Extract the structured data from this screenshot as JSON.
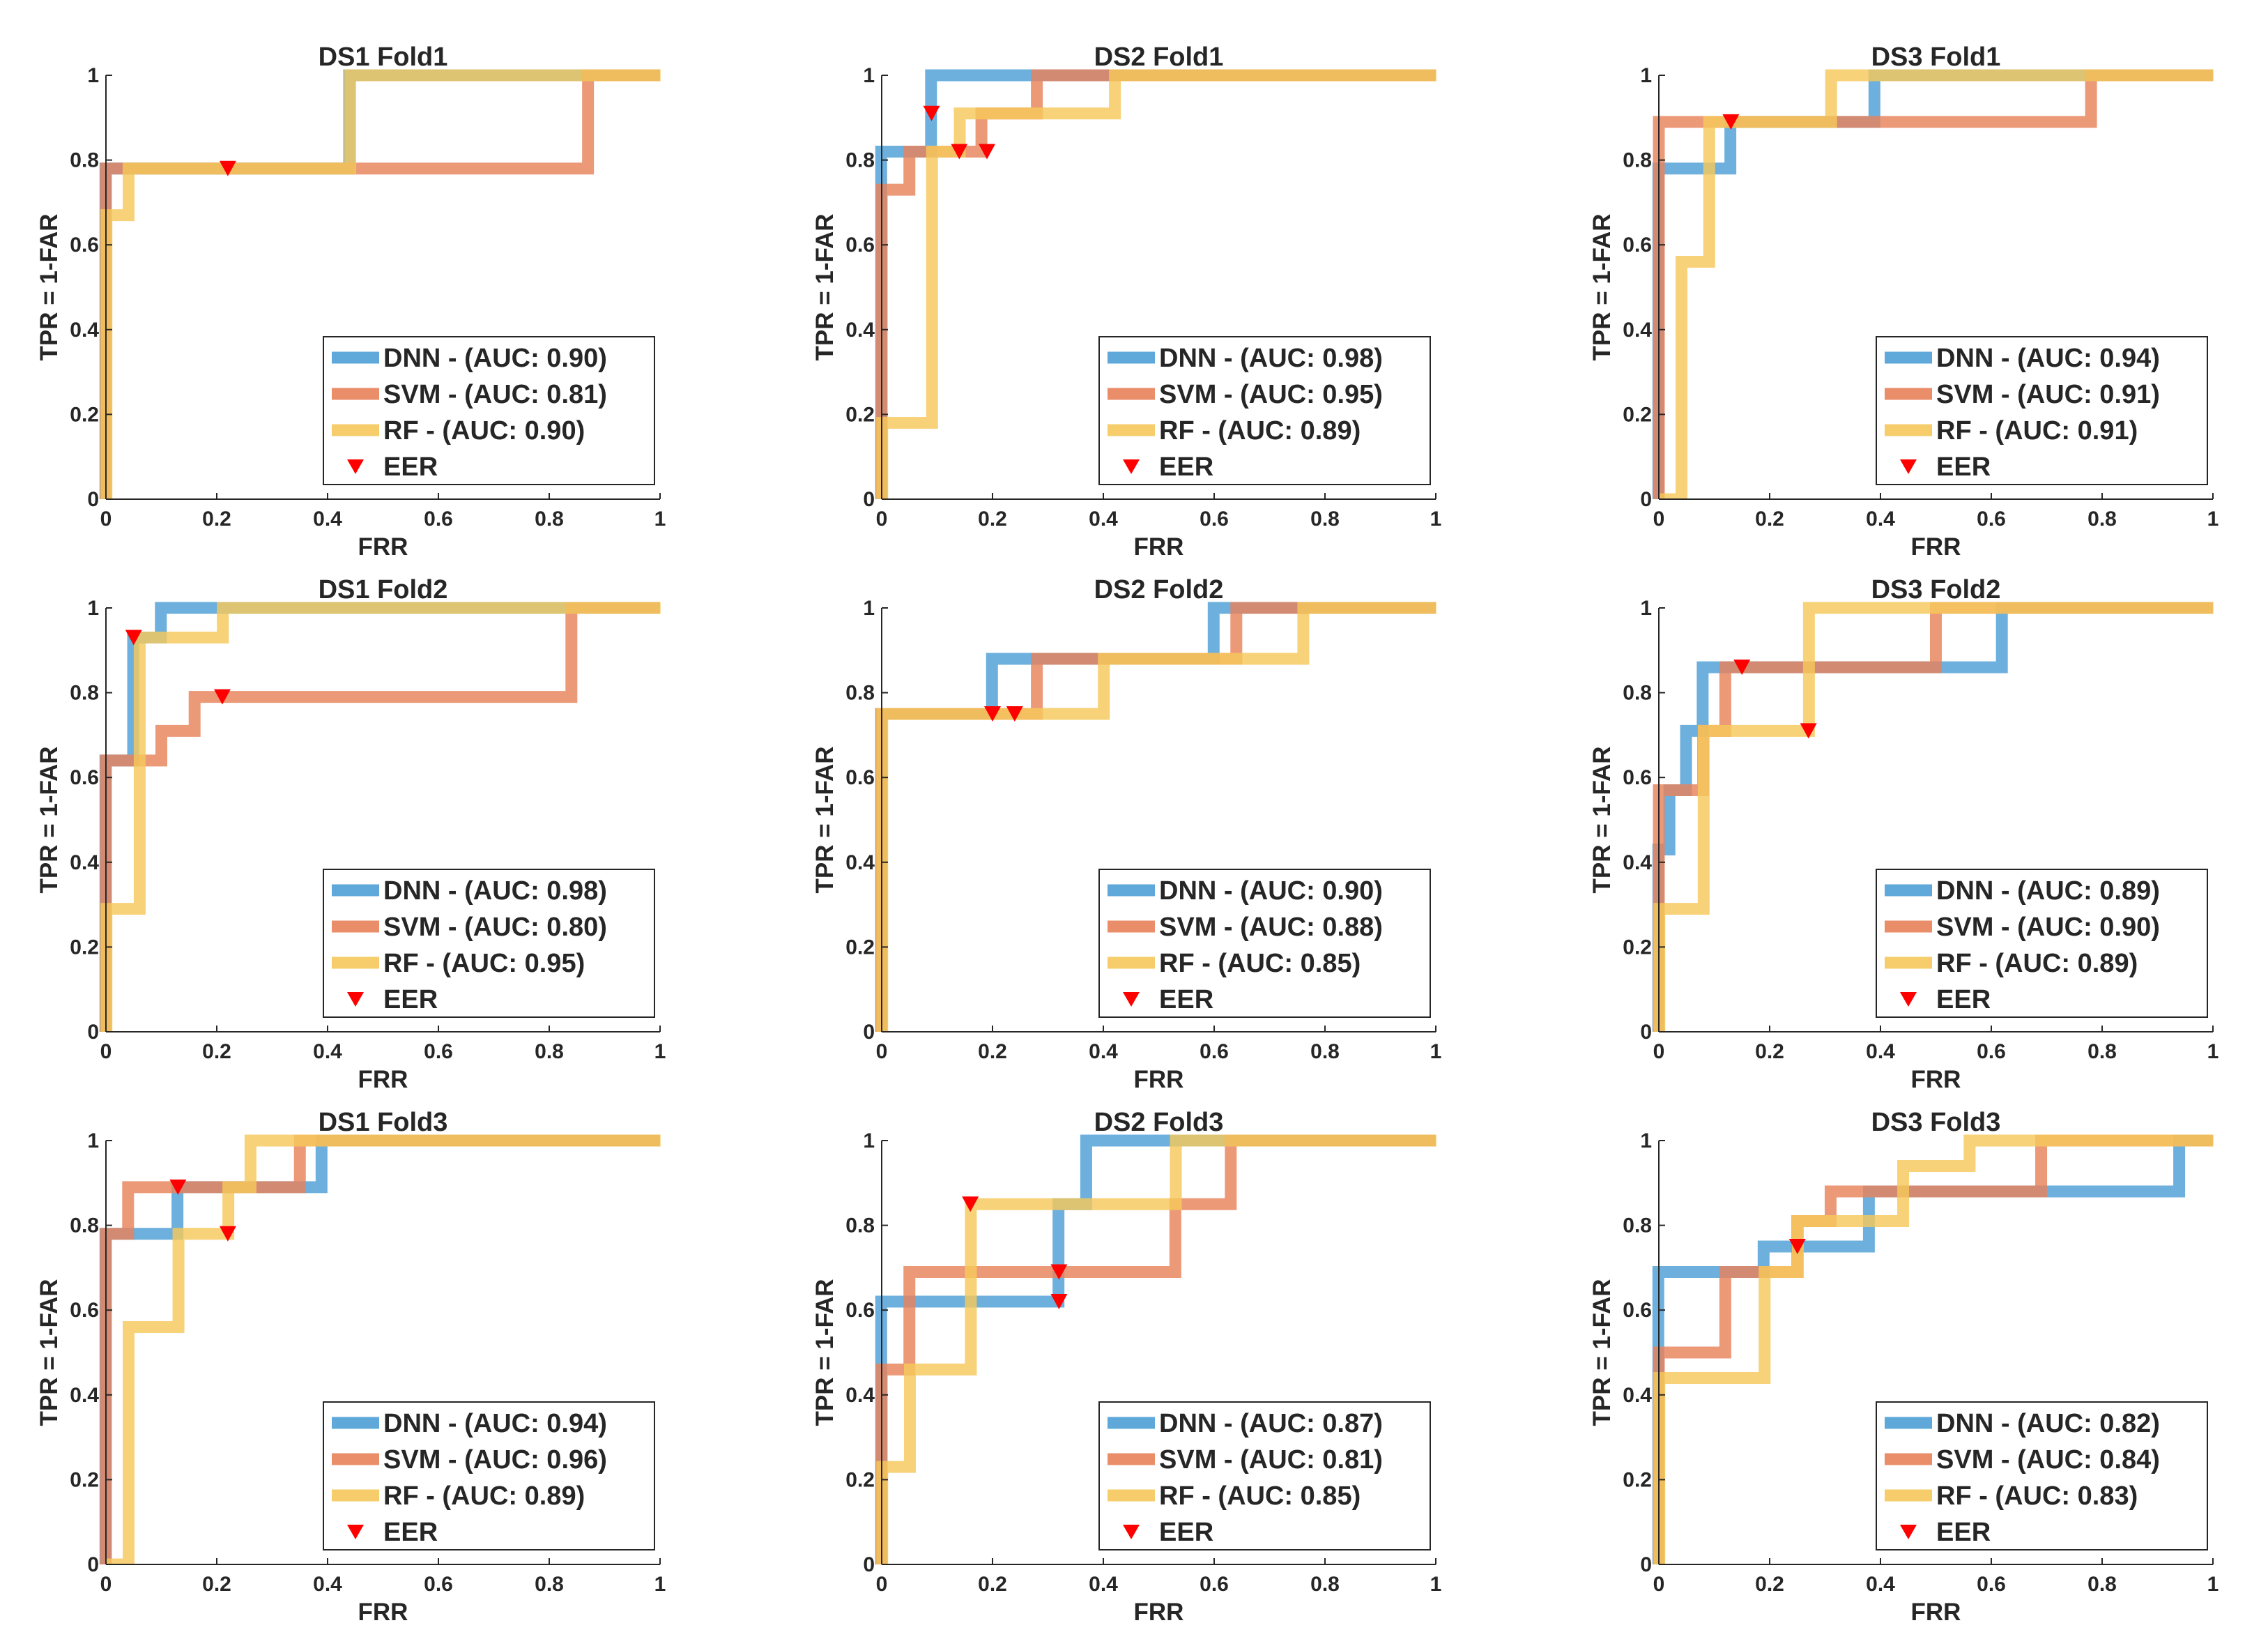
{
  "figure": {
    "axis_color": "#262626",
    "legend_border_color": "#262626",
    "eer_color": "#ff0000"
  },
  "chart_data": [
    {
      "type": "line",
      "title": "DS1 Fold1",
      "xlabel": "FRR",
      "ylabel": "TPR = 1-FAR",
      "xlim": [
        0,
        1
      ],
      "ylim": [
        0,
        1
      ],
      "xticks": [
        0,
        0.2,
        0.4,
        0.6,
        0.8,
        1
      ],
      "xtick_labels": [
        "0",
        "0.2",
        "0.4",
        "0.6",
        "0.8",
        "1"
      ],
      "yticks": [
        0,
        0.2,
        0.4,
        0.6,
        0.8,
        1
      ],
      "ytick_labels": [
        "0",
        "0.2",
        "0.4",
        "0.6",
        "0.8",
        "1"
      ],
      "legend_position": "lower-right",
      "series": [
        {
          "name": "DNN",
          "label": "DNN - (AUC: 0.90)",
          "color": "#4d9fd6",
          "x": [
            0,
            0,
            0.44,
            0.44,
            1
          ],
          "y": [
            0,
            0.78,
            0.78,
            1,
            1
          ]
        },
        {
          "name": "SVM",
          "label": "SVM - (AUC: 0.81)",
          "color": "#e8825a",
          "x": [
            0,
            0,
            0.87,
            0.87,
            1
          ],
          "y": [
            0,
            0.78,
            0.78,
            1,
            1
          ]
        },
        {
          "name": "RF",
          "label": "RF - (AUC: 0.90)",
          "color": "#f5c85a",
          "x": [
            0,
            0,
            0.04,
            0.04,
            0.44,
            0.44,
            1
          ],
          "y": [
            0,
            0.67,
            0.67,
            0.78,
            0.78,
            1,
            1
          ]
        }
      ],
      "eer_label": "EER",
      "eer_points": [
        {
          "x": 0.22,
          "y": 0.78
        }
      ]
    },
    {
      "type": "line",
      "title": "DS2 Fold1",
      "xlabel": "FRR",
      "ylabel": "TPR = 1-FAR",
      "xlim": [
        0,
        1
      ],
      "ylim": [
        0,
        1
      ],
      "xticks": [
        0,
        0.2,
        0.4,
        0.6,
        0.8,
        1
      ],
      "xtick_labels": [
        "0",
        "0.2",
        "0.4",
        "0.6",
        "0.8",
        "1"
      ],
      "yticks": [
        0,
        0.2,
        0.4,
        0.6,
        0.8,
        1
      ],
      "ytick_labels": [
        "0",
        "0.2",
        "0.4",
        "0.6",
        "0.8",
        "1"
      ],
      "legend_position": "lower-right",
      "series": [
        {
          "name": "DNN",
          "label": "DNN - (AUC: 0.98)",
          "color": "#4d9fd6",
          "x": [
            0,
            0,
            0.09,
            0.09,
            1
          ],
          "y": [
            0,
            0.82,
            0.82,
            1,
            1
          ]
        },
        {
          "name": "SVM",
          "label": "SVM - (AUC: 0.95)",
          "color": "#e8825a",
          "x": [
            0,
            0,
            0.05,
            0.05,
            0.18,
            0.18,
            0.28,
            0.28,
            1
          ],
          "y": [
            0,
            0.73,
            0.73,
            0.82,
            0.82,
            0.91,
            0.91,
            1,
            1
          ]
        },
        {
          "name": "RF",
          "label": "RF - (AUC: 0.89)",
          "color": "#f5c85a",
          "x": [
            0,
            0,
            0.09,
            0.09,
            0.14,
            0.14,
            0.42,
            0.42,
            1
          ],
          "y": [
            0,
            0.18,
            0.18,
            0.82,
            0.82,
            0.91,
            0.91,
            1,
            1
          ]
        }
      ],
      "eer_label": "EER",
      "eer_points": [
        {
          "x": 0.09,
          "y": 0.91
        },
        {
          "x": 0.14,
          "y": 0.82
        },
        {
          "x": 0.19,
          "y": 0.82
        }
      ]
    },
    {
      "type": "line",
      "title": "DS3 Fold1",
      "xlabel": "FRR",
      "ylabel": "TPR = 1-FAR",
      "xlim": [
        0,
        1
      ],
      "ylim": [
        0,
        1
      ],
      "xticks": [
        0,
        0.2,
        0.4,
        0.6,
        0.8,
        1
      ],
      "xtick_labels": [
        "0",
        "0.2",
        "0.4",
        "0.6",
        "0.8",
        "1"
      ],
      "yticks": [
        0,
        0.2,
        0.4,
        0.6,
        0.8,
        1
      ],
      "ytick_labels": [
        "0",
        "0.2",
        "0.4",
        "0.6",
        "0.8",
        "1"
      ],
      "legend_position": "lower-right",
      "series": [
        {
          "name": "DNN",
          "label": "DNN - (AUC: 0.94)",
          "color": "#4d9fd6",
          "x": [
            0,
            0,
            0.13,
            0.13,
            0.39,
            0.39,
            1
          ],
          "y": [
            0,
            0.78,
            0.78,
            0.89,
            0.89,
            1,
            1
          ]
        },
        {
          "name": "SVM",
          "label": "SVM - (AUC: 0.91)",
          "color": "#e8825a",
          "x": [
            0,
            0,
            0.78,
            0.78,
            1
          ],
          "y": [
            0,
            0.89,
            0.89,
            1,
            1
          ]
        },
        {
          "name": "RF",
          "label": "RF - (AUC: 0.91)",
          "color": "#f5c85a",
          "x": [
            0,
            0.04,
            0.04,
            0.09,
            0.09,
            0.31,
            0.31,
            1
          ],
          "y": [
            0,
            0,
            0.56,
            0.56,
            0.89,
            0.89,
            1,
            1
          ]
        }
      ],
      "eer_label": "EER",
      "eer_points": [
        {
          "x": 0.13,
          "y": 0.89
        }
      ]
    },
    {
      "type": "line",
      "title": "DS1 Fold2",
      "xlabel": "FRR",
      "ylabel": "TPR = 1-FAR",
      "xlim": [
        0,
        1
      ],
      "ylim": [
        0,
        1
      ],
      "xticks": [
        0,
        0.2,
        0.4,
        0.6,
        0.8,
        1
      ],
      "xtick_labels": [
        "0",
        "0.2",
        "0.4",
        "0.6",
        "0.8",
        "1"
      ],
      "yticks": [
        0,
        0.2,
        0.4,
        0.6,
        0.8,
        1
      ],
      "ytick_labels": [
        "0",
        "0.2",
        "0.4",
        "0.6",
        "0.8",
        "1"
      ],
      "legend_position": "lower-right",
      "series": [
        {
          "name": "DNN",
          "label": "DNN - (AUC: 0.98)",
          "color": "#4d9fd6",
          "x": [
            0,
            0,
            0.05,
            0.05,
            0.1,
            0.1,
            1
          ],
          "y": [
            0,
            0.64,
            0.64,
            0.93,
            0.93,
            1,
            1
          ]
        },
        {
          "name": "SVM",
          "label": "SVM - (AUC: 0.80)",
          "color": "#e8825a",
          "x": [
            0,
            0,
            0.1,
            0.1,
            0.16,
            0.16,
            0.84,
            0.84,
            1
          ],
          "y": [
            0,
            0.64,
            0.64,
            0.71,
            0.71,
            0.79,
            0.79,
            1,
            1
          ]
        },
        {
          "name": "RF",
          "label": "RF - (AUC: 0.95)",
          "color": "#f5c85a",
          "x": [
            0,
            0,
            0.06,
            0.06,
            0.21,
            0.21,
            1
          ],
          "y": [
            0,
            0.29,
            0.29,
            0.93,
            0.93,
            1,
            1
          ]
        }
      ],
      "eer_label": "EER",
      "eer_points": [
        {
          "x": 0.05,
          "y": 0.93
        },
        {
          "x": 0.21,
          "y": 0.79
        }
      ]
    },
    {
      "type": "line",
      "title": "DS2 Fold2",
      "xlabel": "FRR",
      "ylabel": "TPR = 1-FAR",
      "xlim": [
        0,
        1
      ],
      "ylim": [
        0,
        1
      ],
      "xticks": [
        0,
        0.2,
        0.4,
        0.6,
        0.8,
        1
      ],
      "xtick_labels": [
        "0",
        "0.2",
        "0.4",
        "0.6",
        "0.8",
        "1"
      ],
      "yticks": [
        0,
        0.2,
        0.4,
        0.6,
        0.8,
        1
      ],
      "ytick_labels": [
        "0",
        "0.2",
        "0.4",
        "0.6",
        "0.8",
        "1"
      ],
      "legend_position": "lower-right",
      "series": [
        {
          "name": "DNN",
          "label": "DNN - (AUC: 0.90)",
          "color": "#4d9fd6",
          "x": [
            0,
            0,
            0.2,
            0.2,
            0.6,
            0.6,
            1
          ],
          "y": [
            0,
            0.75,
            0.75,
            0.88,
            0.88,
            1,
            1
          ]
        },
        {
          "name": "SVM",
          "label": "SVM - (AUC: 0.88)",
          "color": "#e8825a",
          "x": [
            0,
            0,
            0.28,
            0.28,
            0.64,
            0.64,
            1
          ],
          "y": [
            0,
            0.75,
            0.75,
            0.88,
            0.88,
            1,
            1
          ]
        },
        {
          "name": "RF",
          "label": "RF - (AUC: 0.85)",
          "color": "#f5c85a",
          "x": [
            0,
            0,
            0.4,
            0.4,
            0.76,
            0.76,
            1
          ],
          "y": [
            0,
            0.75,
            0.75,
            0.88,
            0.88,
            1,
            1
          ]
        }
      ],
      "eer_label": "EER",
      "eer_points": [
        {
          "x": 0.2,
          "y": 0.75
        },
        {
          "x": 0.24,
          "y": 0.75
        }
      ]
    },
    {
      "type": "line",
      "title": "DS3 Fold2",
      "xlabel": "FRR",
      "ylabel": "TPR = 1-FAR",
      "xlim": [
        0,
        1
      ],
      "ylim": [
        0,
        1
      ],
      "xticks": [
        0,
        0.2,
        0.4,
        0.6,
        0.8,
        1
      ],
      "xtick_labels": [
        "0",
        "0.2",
        "0.4",
        "0.6",
        "0.8",
        "1"
      ],
      "yticks": [
        0,
        0.2,
        0.4,
        0.6,
        0.8,
        1
      ],
      "ytick_labels": [
        "0",
        "0.2",
        "0.4",
        "0.6",
        "0.8",
        "1"
      ],
      "legend_position": "lower-right",
      "series": [
        {
          "name": "DNN",
          "label": "DNN - (AUC: 0.89)",
          "color": "#4d9fd6",
          "x": [
            0,
            0,
            0.02,
            0.02,
            0.05,
            0.05,
            0.08,
            0.08,
            0.57,
            0.57,
            0.62,
            0.62,
            1
          ],
          "y": [
            0,
            0.43,
            0.43,
            0.57,
            0.57,
            0.71,
            0.71,
            0.86,
            0.86,
            0.86,
            0.86,
            1,
            1
          ]
        },
        {
          "name": "SVM",
          "label": "SVM - (AUC: 0.90)",
          "color": "#e8825a",
          "x": [
            0,
            0,
            0.08,
            0.08,
            0.12,
            0.12,
            0.5,
            0.5,
            1
          ],
          "y": [
            0,
            0.57,
            0.57,
            0.71,
            0.71,
            0.86,
            0.86,
            1,
            1
          ]
        },
        {
          "name": "RF",
          "label": "RF - (AUC: 0.89)",
          "color": "#f5c85a",
          "x": [
            0,
            0,
            0.08,
            0.08,
            0.27,
            0.27,
            1
          ],
          "y": [
            0,
            0.29,
            0.29,
            0.71,
            0.71,
            1,
            1
          ]
        }
      ],
      "eer_label": "EER",
      "eer_points": [
        {
          "x": 0.15,
          "y": 0.86
        },
        {
          "x": 0.27,
          "y": 0.71
        }
      ]
    },
    {
      "type": "line",
      "title": "DS1 Fold3",
      "xlabel": "FRR",
      "ylabel": "TPR = 1-FAR",
      "xlim": [
        0,
        1
      ],
      "ylim": [
        0,
        1
      ],
      "xticks": [
        0,
        0.2,
        0.4,
        0.6,
        0.8,
        1
      ],
      "xtick_labels": [
        "0",
        "0.2",
        "0.4",
        "0.6",
        "0.8",
        "1"
      ],
      "yticks": [
        0,
        0.2,
        0.4,
        0.6,
        0.8,
        1
      ],
      "ytick_labels": [
        "0",
        "0.2",
        "0.4",
        "0.6",
        "0.8",
        "1"
      ],
      "legend_position": "lower-right",
      "series": [
        {
          "name": "DNN",
          "label": "DNN - (AUC: 0.94)",
          "color": "#4d9fd6",
          "x": [
            0,
            0,
            0.13,
            0.13,
            0.35,
            0.35,
            0.39,
            0.39,
            1
          ],
          "y": [
            0,
            0.78,
            0.78,
            0.89,
            0.89,
            0.89,
            0.89,
            1,
            1
          ]
        },
        {
          "name": "SVM",
          "label": "SVM - (AUC: 0.96)",
          "color": "#e8825a",
          "x": [
            0,
            0,
            0.04,
            0.04,
            0.35,
            0.35,
            1
          ],
          "y": [
            0,
            0.78,
            0.78,
            0.89,
            0.89,
            1,
            1
          ]
        },
        {
          "name": "RF",
          "label": "RF - (AUC: 0.89)",
          "color": "#f5c85a",
          "x": [
            0,
            0.04,
            0.04,
            0.13,
            0.13,
            0.22,
            0.22,
            0.26,
            0.26,
            1
          ],
          "y": [
            0,
            0,
            0.56,
            0.56,
            0.78,
            0.78,
            0.89,
            0.89,
            1,
            1
          ]
        }
      ],
      "eer_label": "EER",
      "eer_points": [
        {
          "x": 0.13,
          "y": 0.89
        },
        {
          "x": 0.22,
          "y": 0.78
        }
      ]
    },
    {
      "type": "line",
      "title": "DS2 Fold3",
      "xlabel": "FRR",
      "ylabel": "TPR = 1-FAR",
      "xlim": [
        0,
        1
      ],
      "ylim": [
        0,
        1
      ],
      "xticks": [
        0,
        0.2,
        0.4,
        0.6,
        0.8,
        1
      ],
      "xtick_labels": [
        "0",
        "0.2",
        "0.4",
        "0.6",
        "0.8",
        "1"
      ],
      "yticks": [
        0,
        0.2,
        0.4,
        0.6,
        0.8,
        1
      ],
      "ytick_labels": [
        "0",
        "0.2",
        "0.4",
        "0.6",
        "0.8",
        "1"
      ],
      "legend_position": "lower-right",
      "series": [
        {
          "name": "DNN",
          "label": "DNN - (AUC: 0.87)",
          "color": "#4d9fd6",
          "x": [
            0,
            0,
            0.32,
            0.32,
            0.37,
            0.37,
            1
          ],
          "y": [
            0,
            0.62,
            0.62,
            0.85,
            0.85,
            1,
            1
          ]
        },
        {
          "name": "SVM",
          "label": "SVM - (AUC: 0.81)",
          "color": "#e8825a",
          "x": [
            0,
            0,
            0.05,
            0.05,
            0.53,
            0.53,
            0.63,
            0.63,
            1
          ],
          "y": [
            0,
            0.46,
            0.46,
            0.69,
            0.69,
            0.85,
            0.85,
            1,
            1
          ]
        },
        {
          "name": "RF",
          "label": "RF - (AUC: 0.85)",
          "color": "#f5c85a",
          "x": [
            0,
            0,
            0.05,
            0.05,
            0.16,
            0.16,
            0.53,
            0.53,
            1
          ],
          "y": [
            0,
            0.23,
            0.23,
            0.46,
            0.46,
            0.85,
            0.85,
            1,
            1
          ]
        }
      ],
      "eer_label": "EER",
      "eer_points": [
        {
          "x": 0.16,
          "y": 0.85
        },
        {
          "x": 0.32,
          "y": 0.69
        },
        {
          "x": 0.32,
          "y": 0.62
        }
      ]
    },
    {
      "type": "line",
      "title": "DS3 Fold3",
      "xlabel": "FRR",
      "ylabel": "TPR = 1-FAR",
      "xlim": [
        0,
        1
      ],
      "ylim": [
        0,
        1
      ],
      "xticks": [
        0,
        0.2,
        0.4,
        0.6,
        0.8,
        1
      ],
      "xtick_labels": [
        "0",
        "0.2",
        "0.4",
        "0.6",
        "0.8",
        "1"
      ],
      "yticks": [
        0,
        0.2,
        0.4,
        0.6,
        0.8,
        1
      ],
      "ytick_labels": [
        "0",
        "0.2",
        "0.4",
        "0.6",
        "0.8",
        "1"
      ],
      "legend_position": "lower-right",
      "series": [
        {
          "name": "DNN",
          "label": "DNN - (AUC: 0.82)",
          "color": "#4d9fd6",
          "x": [
            0,
            0,
            0.19,
            0.19,
            0.38,
            0.38,
            0.94,
            0.94,
            1
          ],
          "y": [
            0,
            0.69,
            0.69,
            0.75,
            0.75,
            0.88,
            0.88,
            1,
            1
          ]
        },
        {
          "name": "SVM",
          "label": "SVM - (AUC: 0.84)",
          "color": "#e8825a",
          "x": [
            0,
            0,
            0.12,
            0.12,
            0.25,
            0.25,
            0.31,
            0.31,
            0.69,
            0.69,
            1
          ],
          "y": [
            0,
            0.5,
            0.5,
            0.69,
            0.69,
            0.81,
            0.81,
            0.88,
            0.88,
            1,
            1
          ]
        },
        {
          "name": "RF",
          "label": "RF - (AUC: 0.83)",
          "color": "#f5c85a",
          "x": [
            0,
            0,
            0.19,
            0.19,
            0.25,
            0.25,
            0.44,
            0.44,
            0.56,
            0.56,
            1
          ],
          "y": [
            0,
            0.44,
            0.44,
            0.69,
            0.69,
            0.81,
            0.81,
            0.94,
            0.94,
            1,
            1
          ]
        }
      ],
      "eer_label": "EER",
      "eer_points": [
        {
          "x": 0.25,
          "y": 0.75
        }
      ]
    }
  ]
}
